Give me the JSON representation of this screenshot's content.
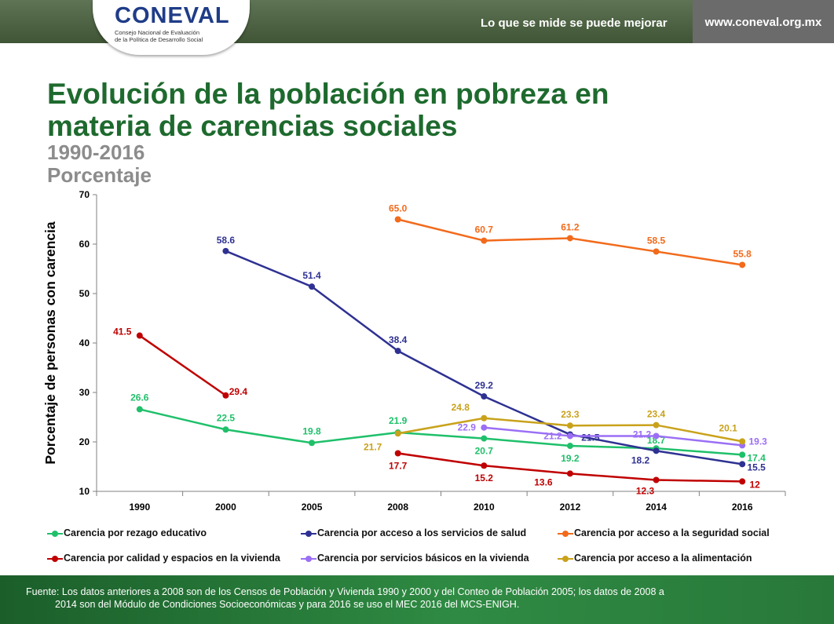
{
  "header": {
    "logo_word": "CONEVAL",
    "logo_line1": "Consejo Nacional de Evaluación",
    "logo_line2": "de la Política de Desarrollo Social",
    "slogan": "Lo que se mide se puede mejorar",
    "website": "www.coneval.org.mx"
  },
  "title_line1": "Evolución de la población en pobreza en",
  "title_line2": "materia de carencias sociales",
  "subtitle_line1": "1990-2016",
  "subtitle_line2": "Porcentaje",
  "chart_data": {
    "type": "line",
    "ylabel": "Porcentaje de personas con carencia",
    "xlabel": "",
    "ylim": [
      10,
      70
    ],
    "yticks": [
      10,
      20,
      30,
      40,
      50,
      60,
      70
    ],
    "categories": [
      "1990",
      "2000",
      "2005",
      "2008",
      "2010",
      "2012",
      "2014",
      "2016"
    ],
    "grid": false,
    "legend_position": "bottom",
    "series": [
      {
        "name": "Carencia por rezago educativo",
        "color": "#1fc06a",
        "values": [
          26.6,
          22.5,
          19.8,
          21.9,
          20.7,
          19.2,
          18.7,
          17.4
        ],
        "labels": [
          "26.6",
          "22.5",
          "19.8",
          "21.9",
          "20.7",
          "19.2",
          "18.7",
          "17.4"
        ]
      },
      {
        "name": "Carencia por acceso a los servicios de salud",
        "color": "#2e3192",
        "values": [
          null,
          58.6,
          51.4,
          38.4,
          29.2,
          21.5,
          18.2,
          15.5
        ],
        "labels": [
          null,
          "58.6",
          "51.4",
          "38.4",
          "29.2",
          "21.5",
          "18.2",
          "15.5"
        ]
      },
      {
        "name": "Carencia por acceso a la seguridad social",
        "color": "#f26a1b",
        "values": [
          null,
          null,
          null,
          65.0,
          60.7,
          61.2,
          58.5,
          55.8
        ],
        "labels": [
          null,
          null,
          null,
          "65.0",
          "60.7",
          "61.2",
          "58.5",
          "55.8"
        ]
      },
      {
        "name": "Carencia por calidad y espacios en la vivienda",
        "color": "#c00000",
        "values": [
          41.5,
          29.4,
          null,
          17.7,
          15.2,
          13.6,
          12.3,
          12
        ],
        "labels": [
          "41.5",
          "29.4",
          null,
          "17.7",
          "15.2",
          "13.6",
          "12.3",
          "12"
        ]
      },
      {
        "name": "Carencia por servicios básicos en la vivienda",
        "color": "#9b6ff5",
        "values": [
          null,
          null,
          null,
          null,
          22.9,
          21.2,
          21.2,
          19.3
        ],
        "labels": [
          null,
          null,
          null,
          null,
          "22.9",
          "21.2",
          "21.2",
          "19.3"
        ]
      },
      {
        "name": "Carencia por acceso a la alimentación",
        "color": "#c9a21b",
        "values": [
          null,
          null,
          null,
          21.7,
          24.8,
          23.3,
          23.4,
          20.1
        ],
        "labels": [
          null,
          null,
          null,
          "21.7",
          "24.8",
          "23.3",
          "23.4",
          "20.1"
        ]
      }
    ]
  },
  "footer": {
    "line1": "Fuente: Los datos anteriores a 2008 son de los Censos de Población y Vivienda 1990 y 2000 y del Conteo de Población 2005; los datos de 2008 a",
    "line2": "2014 son del Módulo de Condiciones Socioeconómicas y para 2016 se uso el MEC 2016 del MCS-ENIGH."
  }
}
